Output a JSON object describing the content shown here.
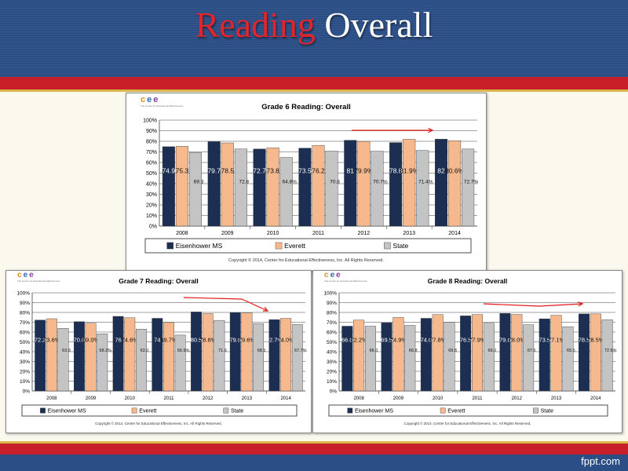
{
  "title": {
    "part1": "Reading",
    "part2": "Overall"
  },
  "footer": {
    "brand": "fppt.com"
  },
  "colors": {
    "school": "#1c2f52",
    "district": "#f5b98d",
    "state": "#c4c4c4",
    "trend_arrow": "#e01818",
    "header_bg": "#2b4e86",
    "header_red": "#c8202a"
  },
  "logo": {
    "letters": [
      "c",
      "e",
      "e"
    ],
    "letter_colors": [
      "#e88a1a",
      "#2b6ab7",
      "#8a3f9c"
    ],
    "tagline": "The Center for Educational Effectiveness"
  },
  "chart_data": [
    {
      "type": "bar",
      "title": "Grade 6 Reading: Overall",
      "categories": [
        "2008",
        "2009",
        "2010",
        "2011",
        "2012",
        "2013",
        "2014"
      ],
      "ylim": [
        0,
        100
      ],
      "yticks": [
        "0%",
        "10%",
        "20%",
        "30%",
        "40%",
        "50%",
        "60%",
        "70%",
        "80%",
        "90%",
        "100%"
      ],
      "grid": true,
      "legend": "bottom",
      "series": [
        {
          "name": "Eisenhower MS",
          "values": [
            74.9,
            79.7,
            72.7,
            73.5,
            81.0,
            78.8,
            82.0
          ],
          "labels": [
            "74.9",
            "79.7",
            "72.7",
            "73.5",
            "81",
            "78.8",
            "82"
          ]
        },
        {
          "name": "Everett",
          "values": [
            75.3,
            78.5,
            73.8,
            76.2,
            79.9,
            81.9,
            80.6
          ],
          "labels": [
            "75.3",
            "78.5",
            "73.8",
            "76.2",
            "79.9%",
            "81.9%",
            "80.6%"
          ]
        },
        {
          "name": "State",
          "values": [
            69.3,
            72.8,
            64.8,
            70.8,
            70.7,
            71.4,
            72.7
          ],
          "labels": [
            "69.3",
            "72.8",
            "64.8%",
            "70.8",
            "70.7%",
            "71.4%",
            "72.7%"
          ]
        }
      ],
      "trend_arrow": "up",
      "copyright": "Copyright © 2014, Center for Educational Effectiveness, Inc.  All Rights Reserved."
    },
    {
      "type": "bar",
      "title": "Grade 7 Reading: Overall",
      "categories": [
        "2008",
        "2009",
        "2010",
        "2011",
        "2012",
        "2013",
        "2014"
      ],
      "ylim": [
        0,
        100
      ],
      "yticks": [
        "0%",
        "10%",
        "20%",
        "30%",
        "40%",
        "50%",
        "60%",
        "70%",
        "80%",
        "90%",
        "100%"
      ],
      "grid": true,
      "legend": "bottom",
      "series": [
        {
          "name": "Eisenhower MS",
          "values": [
            72.2,
            70.6,
            76.0,
            74.0,
            80.5,
            79.9,
            72.7
          ],
          "labels": [
            "72.2",
            "70.6",
            "76",
            "74",
            "80.5",
            "79.9",
            "72.7%"
          ]
        },
        {
          "name": "Everett",
          "values": [
            73.6,
            69.0,
            74.6,
            69.7,
            78.8,
            79.6,
            74.0
          ],
          "labels": [
            "73.6%",
            "69.0%",
            "74.6%",
            "69.7%",
            "78.8%",
            "79.6%",
            "74.0%"
          ]
        },
        {
          "name": "State",
          "values": [
            63.8,
            58.2,
            63.0,
            56.9,
            71.9,
            68.5,
            67.7
          ],
          "labels": [
            "63.8",
            "58.2%",
            "63.0",
            "56.9%",
            "71.9",
            "68.5",
            "67.7%"
          ]
        }
      ],
      "trend_arrow": "up-down",
      "copyright": "Copyright © 2014, Center for Educational Effectiveness, Inc.  All Rights Reserved."
    },
    {
      "type": "bar",
      "title": "Grade 8 Reading: Overall",
      "categories": [
        "2008",
        "2009",
        "2010",
        "2011",
        "2012",
        "2013",
        "2014"
      ],
      "ylim": [
        0,
        100
      ],
      "yticks": [
        "0%",
        "10%",
        "20%",
        "30%",
        "40%",
        "50%",
        "60%",
        "70%",
        "80%",
        "90%",
        "100%"
      ],
      "grid": true,
      "legend": "bottom",
      "series": [
        {
          "name": "Eisenhower MS",
          "values": [
            66.0,
            69.5,
            74.0,
            76.5,
            79.0,
            73.5,
            78.5
          ],
          "labels": [
            "66.0",
            "69.5",
            "74.0",
            "76.5",
            "79.0",
            "73.5",
            "78.5"
          ]
        },
        {
          "name": "Everett",
          "values": [
            72.2,
            74.9,
            77.8,
            77.9,
            78.0,
            77.1,
            78.5
          ],
          "labels": [
            "72.2%",
            "74.9%",
            "77.8%",
            "77.9%",
            "78.0%",
            "77.1%",
            "78.5%"
          ]
        },
        {
          "name": "State",
          "values": [
            66.0,
            66.8,
            69.8,
            69.0,
            67.5,
            65.5,
            72.5
          ],
          "labels": [
            "66.0",
            "66.8",
            "69.8",
            "69.0",
            "67.5",
            "65.5",
            "72.5%"
          ]
        }
      ],
      "trend_arrow": "down-up",
      "copyright": "Copyright © 2014, Center for Educational Effectiveness, Inc.  All Rights Reserved."
    }
  ]
}
